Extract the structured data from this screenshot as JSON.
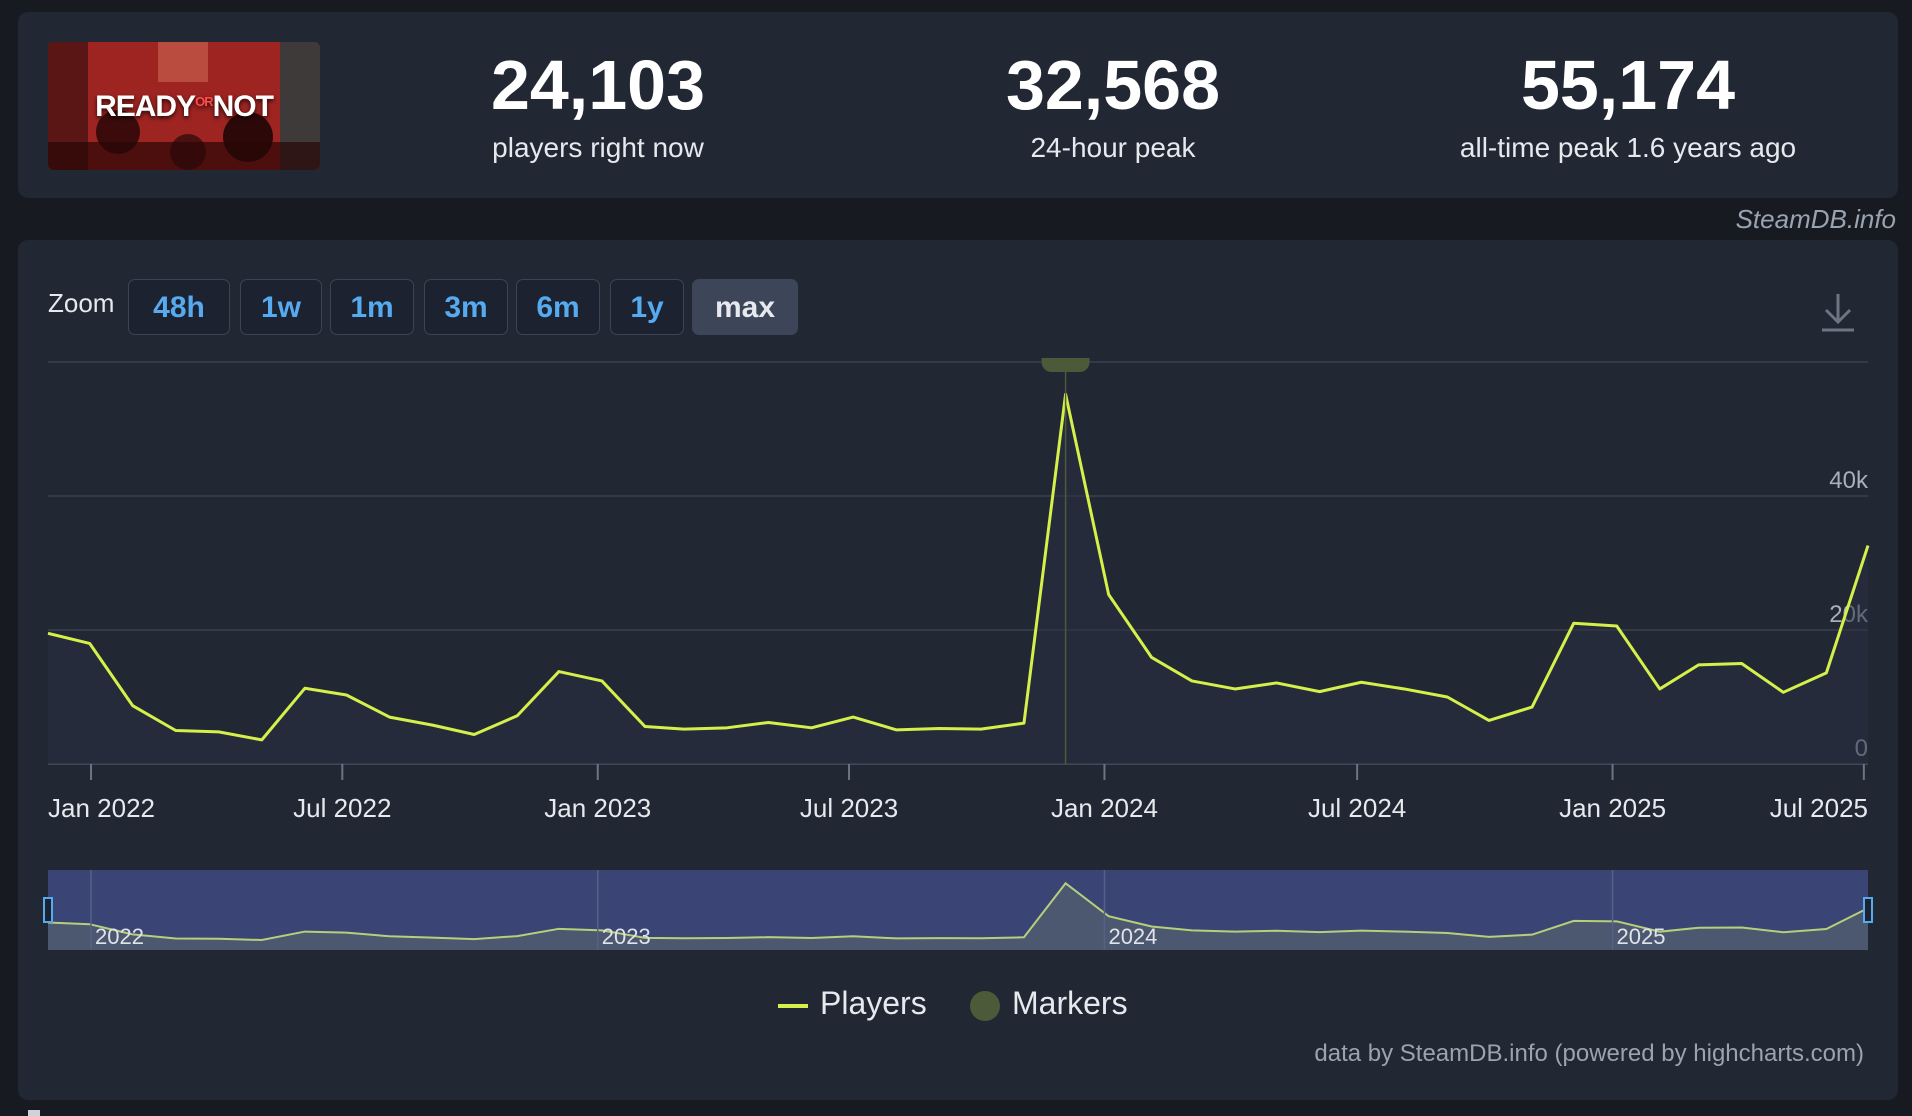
{
  "stats": {
    "current": {
      "value": "24,103",
      "label": "players right now"
    },
    "peak24": {
      "value": "32,568",
      "label": "24-hour peak"
    },
    "alltime": {
      "value": "55,174",
      "label": "all-time peak 1.6 years ago"
    }
  },
  "game_logo": {
    "text_left": "READY",
    "text_or": "OR",
    "text_right": "NOT"
  },
  "credit_top": "SteamDB.info",
  "zoom": {
    "label": "Zoom",
    "buttons": [
      "48h",
      "1w",
      "1m",
      "3m",
      "6m",
      "1y",
      "max"
    ],
    "active": "max"
  },
  "legend": {
    "players": "Players",
    "markers": "Markers"
  },
  "credit_bottom": {
    "text": "data by SteamDB.info (powered by highcharts.com)"
  },
  "colors": {
    "line": "#d5f04a",
    "marker": "#4c5a3a",
    "navigator_bg": "#3a4576",
    "zoom_active": "#3d4658",
    "zoom_text": "#55aaf0"
  },
  "chart_data": {
    "type": "line",
    "title": "",
    "xlabel": "",
    "ylabel": "",
    "ylim": [
      0,
      60000
    ],
    "y_ticks": [
      0,
      20000,
      40000
    ],
    "y_tick_labels": [
      "0",
      "20k",
      "40k"
    ],
    "x_tick_labels": [
      "Jan 2022",
      "Jul 2022",
      "Jan 2023",
      "Jul 2023",
      "Jan 2024",
      "Jul 2024",
      "Jan 2025",
      "Jul 2025"
    ],
    "x_tick_dates": [
      "2022-01-01",
      "2022-07-01",
      "2023-01-01",
      "2023-07-01",
      "2024-01-01",
      "2024-07-01",
      "2025-01-01",
      "2025-07-01"
    ],
    "navigator_labels": [
      "2022",
      "2023",
      "2024",
      "2025"
    ],
    "navigator_label_dates": [
      "2022-01-01",
      "2023-01-01",
      "2024-01-01",
      "2025-01-01"
    ],
    "grid": true,
    "legend_position": "bottom-center",
    "series": [
      {
        "name": "Players",
        "x": [
          "2021-12-01",
          "2021-12-31",
          "2022-01-31",
          "2022-03-03",
          "2022-04-03",
          "2022-05-04",
          "2022-06-04",
          "2022-07-04",
          "2022-08-04",
          "2022-09-04",
          "2022-10-04",
          "2022-11-04",
          "2022-12-04",
          "2023-01-04",
          "2023-02-04",
          "2023-03-04",
          "2023-04-04",
          "2023-05-04",
          "2023-06-04",
          "2023-07-04",
          "2023-08-04",
          "2023-09-04",
          "2023-10-04",
          "2023-11-04",
          "2023-12-04",
          "2024-01-04",
          "2024-02-04",
          "2024-03-04",
          "2024-04-04",
          "2024-05-04",
          "2024-06-04",
          "2024-07-04",
          "2024-08-04",
          "2024-09-04",
          "2024-10-04",
          "2024-11-04",
          "2024-12-04",
          "2025-01-04",
          "2025-02-04",
          "2025-03-04",
          "2025-04-04",
          "2025-05-04",
          "2025-06-04",
          "2025-07-04"
        ],
        "values": [
          19500,
          18000,
          8700,
          5000,
          4800,
          3600,
          11300,
          10300,
          7000,
          5800,
          4400,
          7200,
          13800,
          12400,
          5600,
          5200,
          5400,
          6200,
          5400,
          7000,
          5100,
          5300,
          5200,
          6100,
          55200,
          25300,
          15900,
          12400,
          11200,
          12100,
          10800,
          12200,
          11200,
          10000,
          6500,
          8500,
          21000,
          20600,
          11200,
          14800,
          15000,
          10700,
          13600,
          32600
        ]
      }
    ],
    "markers": [
      {
        "x": "2023-12-04",
        "label": ""
      }
    ]
  }
}
